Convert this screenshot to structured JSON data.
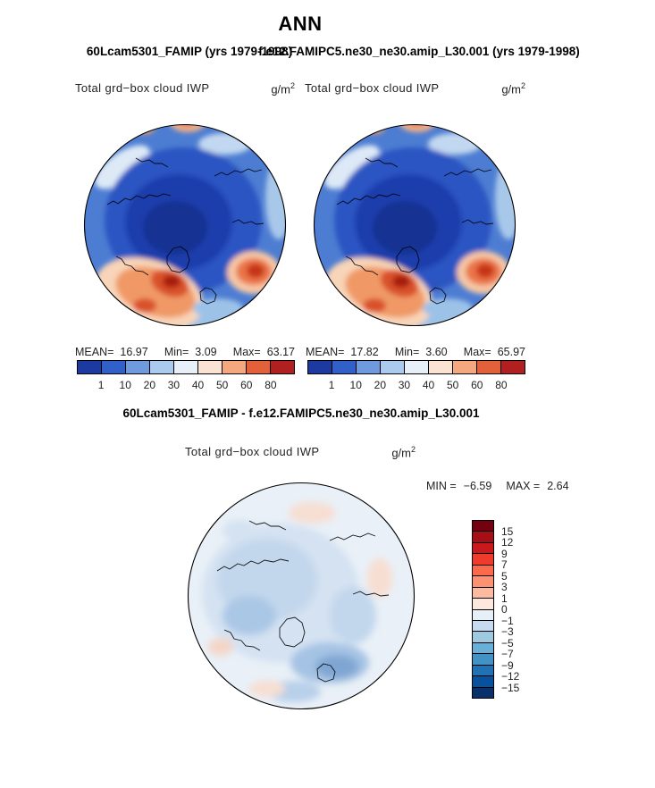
{
  "page": {
    "title": "ANN",
    "background": "#ffffff"
  },
  "subtitles": {
    "left": "60Lcam5301_FAMIP (yrs 1979-1998)",
    "right": "f.e12.FAMIPC5.ne30_ne30.amip_L30.001 (yrs 1979-1998)"
  },
  "panels": {
    "left": {
      "title": "Total grd−box cloud IWP",
      "units_base": "g/m",
      "units_exp": "2",
      "stats": {
        "mean_label": "MEAN=",
        "mean": "16.97",
        "min_label": "Min=",
        "min": "3.09",
        "max_label": "Max=",
        "max": "63.17"
      }
    },
    "right": {
      "title": "Total grd−box cloud IWP",
      "units_base": "g/m",
      "units_exp": "2",
      "stats": {
        "mean_label": "MEAN=",
        "mean": "17.82",
        "min_label": "Min=",
        "min": "3.60",
        "max_label": "Max=",
        "max": "65.97"
      }
    },
    "diff": {
      "header": "60Lcam5301_FAMIP - f.e12.FAMIPC5.ne30_ne30.amip_L30.001",
      "title": "Total grd−box cloud IWP",
      "units_base": "g/m",
      "units_exp": "2",
      "stats": {
        "min_label": "MIN =",
        "min": "−6.59",
        "max_label": "MAX =",
        "max": "2.64"
      }
    }
  },
  "colorbar_top": {
    "tick_labels": [
      "1",
      "10",
      "20",
      "30",
      "40",
      "50",
      "60",
      "80"
    ],
    "colors": [
      "#1c3aa0",
      "#3160c8",
      "#6f9ade",
      "#aacbee",
      "#e7f0f8",
      "#fae3d2",
      "#f5a87e",
      "#e2603a",
      "#b02020"
    ]
  },
  "colorbar_diff": {
    "tick_labels": [
      "15",
      "12",
      "9",
      "7",
      "5",
      "3",
      "1",
      "0",
      "−1",
      "−3",
      "−5",
      "−7",
      "−9",
      "−12",
      "−15"
    ],
    "colors": [
      "#730210",
      "#a50f15",
      "#cb181d",
      "#ef3b2c",
      "#fb6a4a",
      "#fc9272",
      "#fcbba1",
      "#fee8dd",
      "#e8f0f7",
      "#c6dbef",
      "#9ecae1",
      "#6baed6",
      "#4292c6",
      "#2171b5",
      "#08519c",
      "#08306b"
    ]
  },
  "chart_data": [
    {
      "type": "heatmap",
      "subtype": "north-polar-stereographic-filled-contour-map",
      "title": "Total grd-box cloud IWP",
      "units": "g/m2",
      "case": "60Lcam5301_FAMIP (yrs 1979-1998)",
      "season": "ANN",
      "stats": {
        "mean": 16.97,
        "min": 3.09,
        "max": 63.17
      },
      "contour_levels": [
        1,
        10,
        20,
        30,
        40,
        50,
        60,
        80
      ],
      "palette": [
        "#1c3aa0",
        "#3160c8",
        "#6f9ade",
        "#aacbee",
        "#e7f0f8",
        "#fae3d2",
        "#f5a87e",
        "#e2603a",
        "#b02020"
      ],
      "legend_position": "below",
      "notes": "Low IWP (dark blue) over central Arctic; high IWP (orange/red) along lower-left and right storm-track regions near map rim"
    },
    {
      "type": "heatmap",
      "subtype": "north-polar-stereographic-filled-contour-map",
      "title": "Total grd-box cloud IWP",
      "units": "g/m2",
      "case": "f.e12.FAMIPC5.ne30_ne30.amip_L30.001 (yrs 1979-1998)",
      "season": "ANN",
      "stats": {
        "mean": 17.82,
        "min": 3.6,
        "max": 65.97
      },
      "contour_levels": [
        1,
        10,
        20,
        30,
        40,
        50,
        60,
        80
      ],
      "palette": [
        "#1c3aa0",
        "#3160c8",
        "#6f9ade",
        "#aacbee",
        "#e7f0f8",
        "#fae3d2",
        "#f5a87e",
        "#e2603a",
        "#b02020"
      ],
      "legend_position": "below"
    },
    {
      "type": "heatmap",
      "subtype": "north-polar-stereographic-filled-contour-difference-map",
      "title": "Total grd-box cloud IWP",
      "units": "g/m2",
      "case": "60Lcam5301_FAMIP - f.e12.FAMIPC5.ne30_ne30.amip_L30.001",
      "season": "ANN",
      "stats": {
        "min": -6.59,
        "max": 2.64
      },
      "contour_levels": [
        -15,
        -12,
        -9,
        -7,
        -5,
        -3,
        -1,
        0,
        1,
        3,
        5,
        7,
        9,
        12,
        15
      ],
      "palette": [
        "#730210",
        "#a50f15",
        "#cb181d",
        "#ef3b2c",
        "#fb6a4a",
        "#fc9272",
        "#fcbba1",
        "#fee8dd",
        "#e8f0f7",
        "#c6dbef",
        "#9ecae1",
        "#6baed6",
        "#4292c6",
        "#2171b5",
        "#08519c",
        "#08306b"
      ],
      "legend_position": "right",
      "notes": "Mostly pale/light-blue (small negative differences) with slightly stronger negative patches near Greenland sector"
    }
  ]
}
